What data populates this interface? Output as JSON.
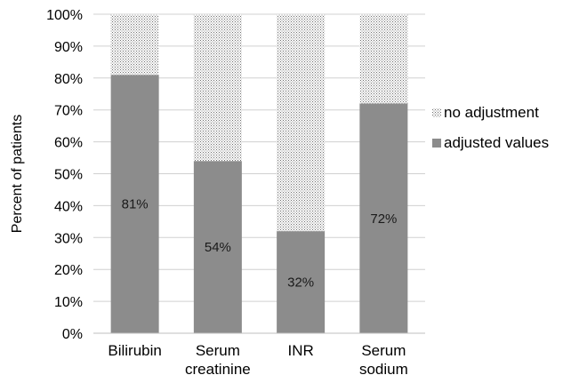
{
  "chart_data": {
    "type": "bar",
    "stacked": true,
    "categories": [
      [
        "Bilirubin"
      ],
      [
        "Serum",
        "creatinine"
      ],
      [
        "INR"
      ],
      [
        "Serum",
        "sodium"
      ]
    ],
    "series": [
      {
        "name": "adjusted values",
        "values": [
          81,
          54,
          32,
          72
        ],
        "data_labels": [
          "81%",
          "54%",
          "32%",
          "72%"
        ],
        "color": "#8c8c8c",
        "pattern": "solid"
      },
      {
        "name": "no adjustment",
        "values": [
          19,
          46,
          68,
          28
        ],
        "color": "#bdbdbd",
        "pattern": "dotted"
      }
    ],
    "ylabel": "Percent of patients",
    "ylim": [
      0,
      100
    ],
    "yticks": [
      "0%",
      "10%",
      "20%",
      "30%",
      "40%",
      "50%",
      "60%",
      "70%",
      "80%",
      "90%",
      "100%"
    ],
    "grid": true,
    "legend": {
      "position": "right",
      "entries": [
        "no adjustment",
        "adjusted values"
      ]
    }
  }
}
